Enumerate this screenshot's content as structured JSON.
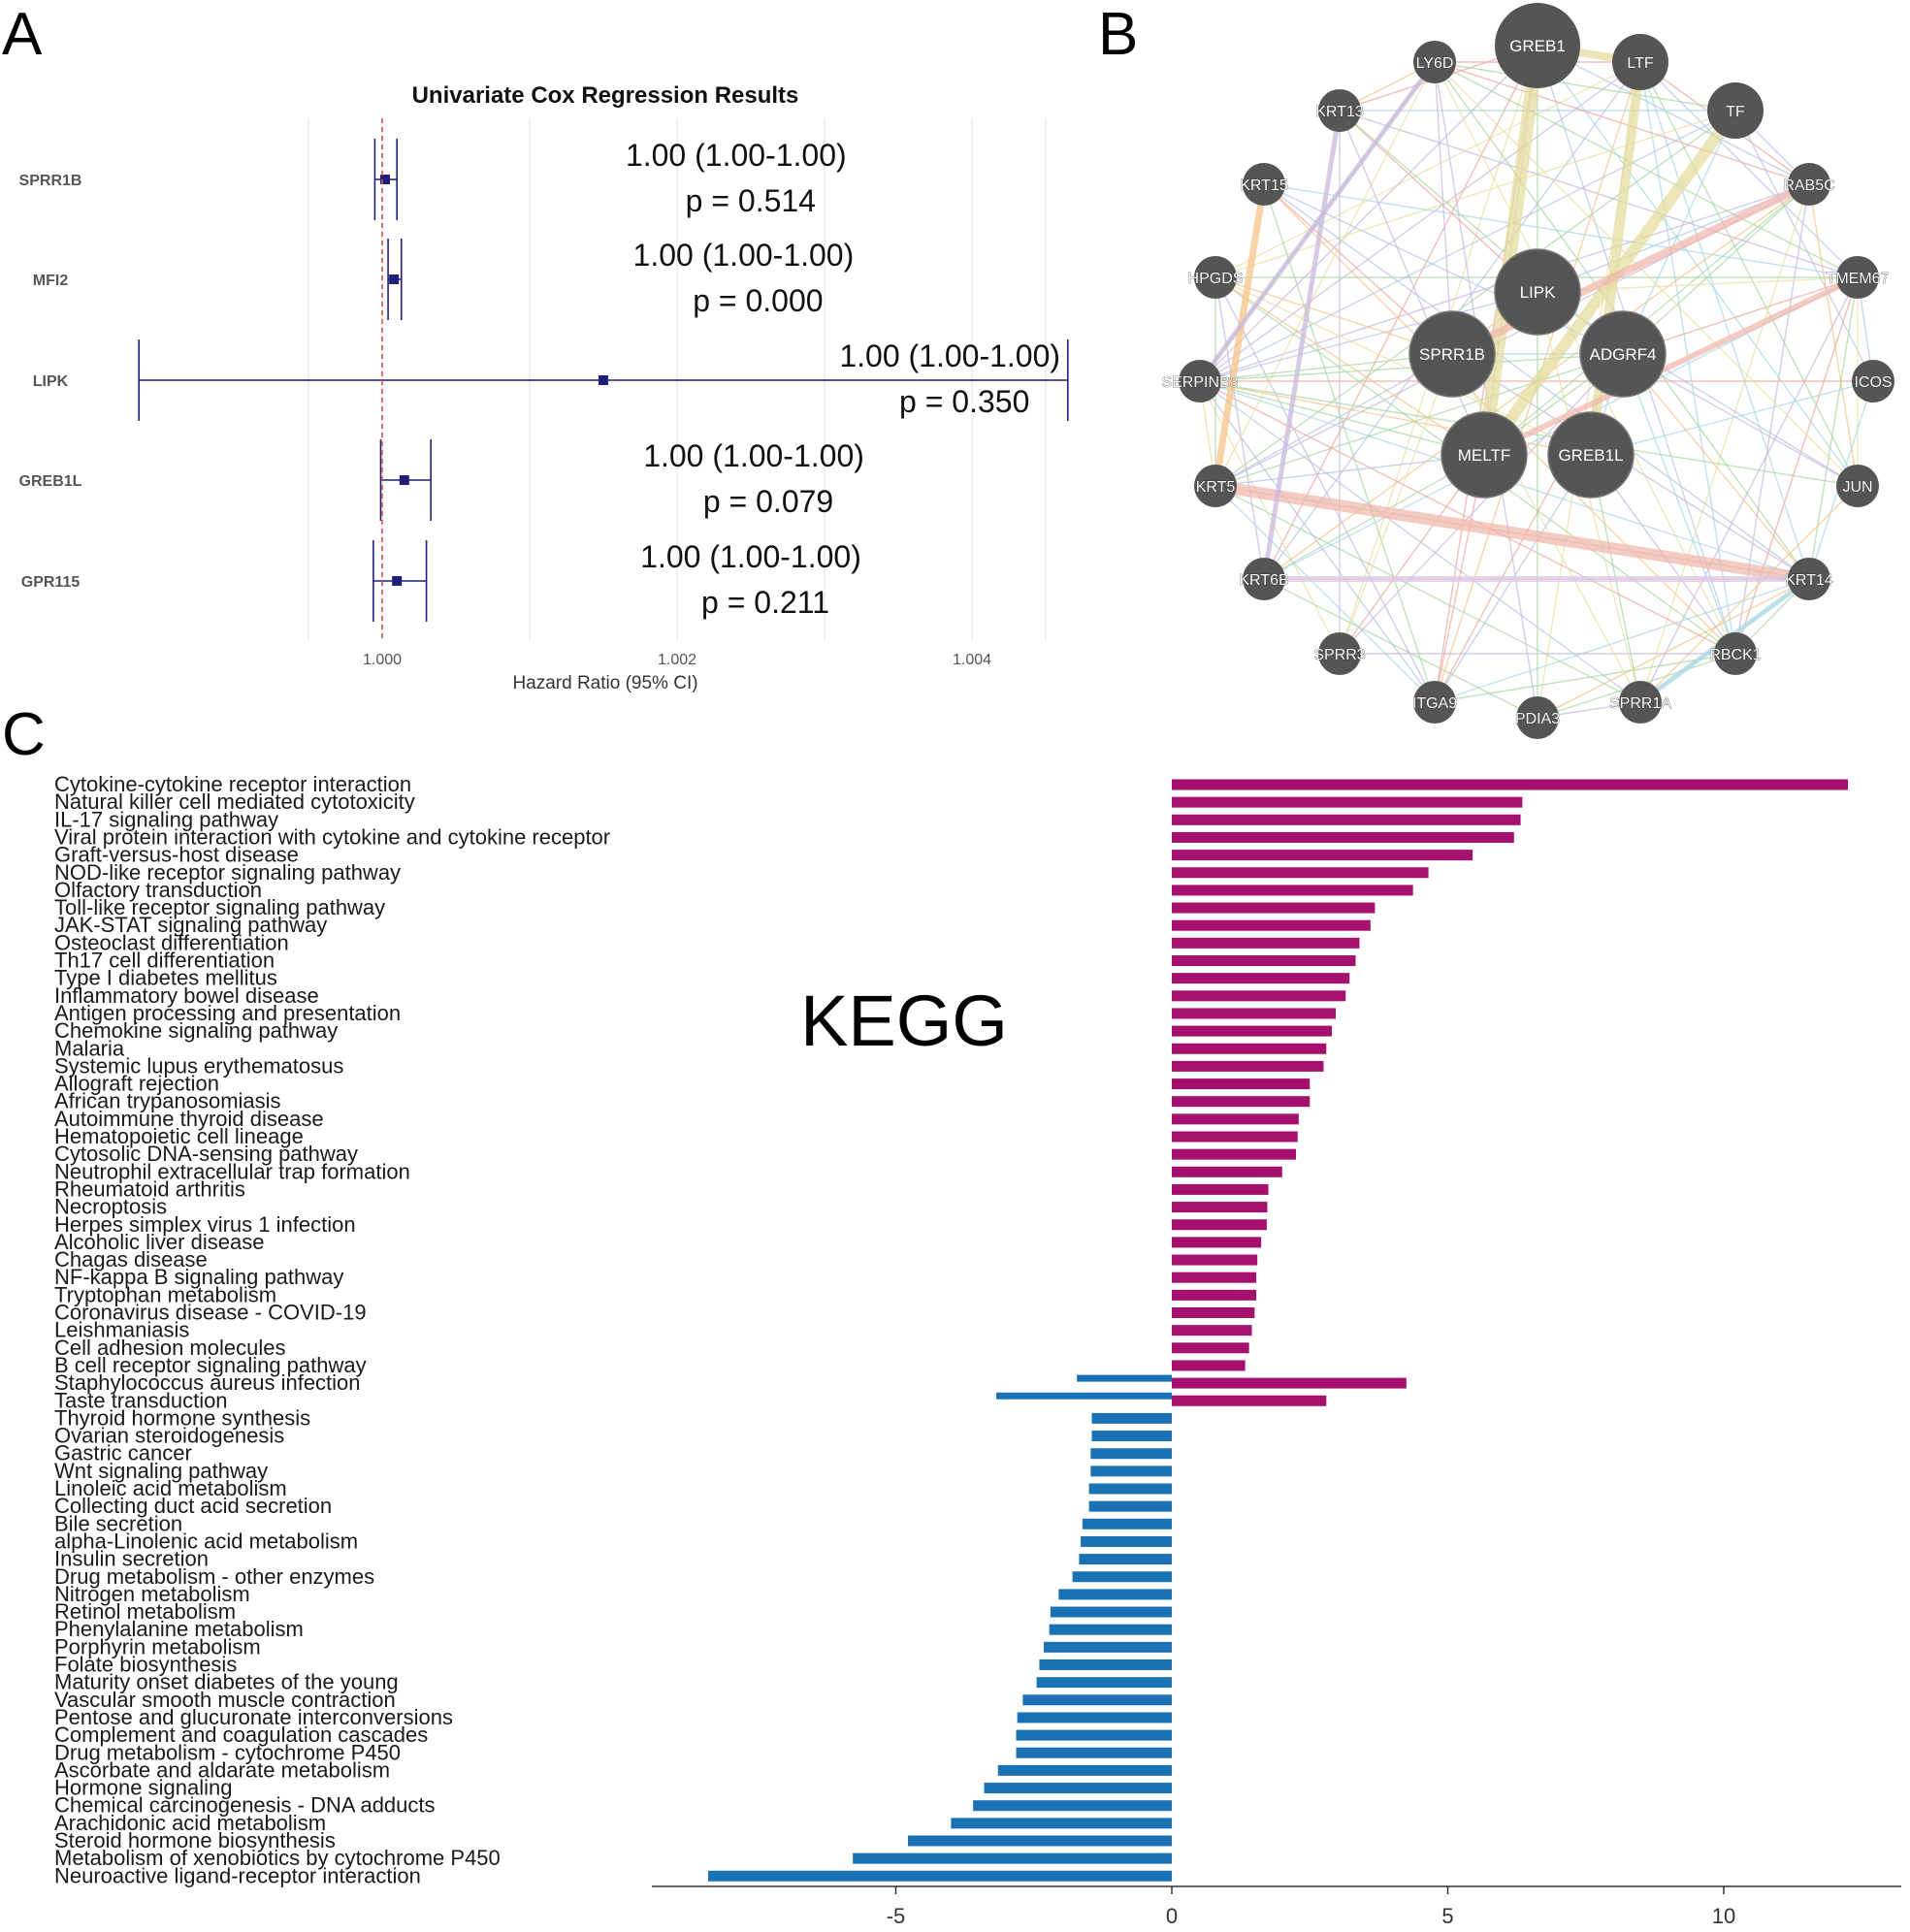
{
  "panels": {
    "a": "A",
    "b": "B",
    "c": "C"
  },
  "chart_data": [
    {
      "type": "forest",
      "title": "Univariate Cox Regression Results",
      "xlabel": "Hazard Ratio (95% CI)",
      "xlim": [
        0.9995,
        1.0048
      ],
      "xticks": [
        1.0,
        1.002,
        1.004
      ],
      "xtick_labels": [
        "1.000",
        "1.002",
        "1.004"
      ],
      "reference_line": 1.0,
      "colors": {
        "point": "#1f1f7a",
        "reference": "#d9534f",
        "grid": "#e6e6e6"
      },
      "rows": [
        {
          "gene": "SPRR1B",
          "hr": 1.00002,
          "lower": 0.99995,
          "upper": 1.0001,
          "hr_text": "1.00 (1.00-1.00)",
          "p_text": "p = 0.514",
          "text_x": 1.0024
        },
        {
          "gene": "MFI2",
          "hr": 1.00008,
          "lower": 1.00004,
          "upper": 1.00013,
          "hr_text": "1.00 (1.00-1.00)",
          "p_text": "p = 0.000",
          "text_x": 1.00245
        },
        {
          "gene": "LIPK",
          "hr": 1.0015,
          "lower": 0.99835,
          "upper": 1.00465,
          "hr_text": "1.00 (1.00-1.00)",
          "p_text": "p = 0.350",
          "text_x": 1.00385
        },
        {
          "gene": "GREB1L",
          "hr": 1.00015,
          "lower": 0.99999,
          "upper": 1.00033,
          "hr_text": "1.00 (1.00-1.00)",
          "p_text": "p = 0.079",
          "text_x": 1.00252
        },
        {
          "gene": "GPR115",
          "hr": 1.0001,
          "lower": 0.99994,
          "upper": 1.0003,
          "hr_text": "1.00 (1.00-1.00)",
          "p_text": "p = 0.211",
          "text_x": 1.0025
        }
      ]
    },
    {
      "type": "network",
      "node_color": "#555555",
      "center_nodes": [
        "LIPK",
        "SPRR1B",
        "ADGRF4",
        "MELTF",
        "GREB1L"
      ],
      "ring_nodes": [
        "GREB1",
        "LTF",
        "TF",
        "RAB5C",
        "TMEM67",
        "ICOS",
        "JUN",
        "KRT14",
        "RBCK1",
        "SPRR1A",
        "PDIA3",
        "ITGA9",
        "SPRR3",
        "KRT6B",
        "KRT5",
        "SERPINB3",
        "HPGDS",
        "KRT15",
        "KRT13",
        "LY6D"
      ],
      "edge_colors": [
        "#c9b8de",
        "#b5c5e6",
        "#a9d8a4",
        "#f0a8a0",
        "#e9e0a4",
        "#f5c48a",
        "#a8d8e8"
      ]
    },
    {
      "type": "bar",
      "orientation": "horizontal",
      "annotation": "KEGG",
      "xlim": [
        -9.5,
        13.3
      ],
      "xticks": [
        -5,
        0,
        5,
        10
      ],
      "colors": {
        "positive": "#a5106e",
        "negative": "#1a72b4"
      },
      "categories": [
        "Cytokine-cytokine receptor interaction",
        "Natural killer cell mediated cytotoxicity",
        "IL-17 signaling pathway",
        "Viral protein interaction with cytokine and cytokine receptor",
        "Graft-versus-host disease",
        "NOD-like receptor signaling pathway",
        "Olfactory transduction",
        "Toll-like receptor signaling pathway",
        "JAK-STAT signaling pathway",
        "Osteoclast differentiation",
        "Th17 cell differentiation",
        "Type I diabetes mellitus",
        "Inflammatory bowel disease",
        "Antigen processing and presentation",
        "Chemokine signaling pathway",
        "Malaria",
        "Systemic lupus erythematosus",
        "Allograft rejection",
        "African trypanosomiasis",
        "Autoimmune thyroid disease",
        "Hematopoietic cell lineage",
        "Cytosolic DNA-sensing pathway",
        "Neutrophil extracellular trap formation",
        "Rheumatoid arthritis",
        "Necroptosis",
        "Herpes simplex virus 1 infection",
        "Alcoholic liver disease",
        "Chagas disease",
        "NF-kappa B signaling pathway",
        "Tryptophan metabolism",
        "Coronavirus disease - COVID-19",
        "Leishmaniasis",
        "Cell adhesion molecules",
        "B cell receptor signaling pathway",
        "Staphylococcus aureus infection",
        "Taste transduction",
        "Thyroid hormone synthesis",
        "Ovarian steroidogenesis",
        "Gastric cancer",
        "Wnt signaling pathway",
        "Linoleic acid metabolism",
        "Collecting duct acid secretion",
        "Bile secretion",
        "alpha-Linolenic acid metabolism",
        "Insulin secretion",
        "Drug metabolism - other enzymes",
        "Nitrogen metabolism",
        "Retinol metabolism",
        "Phenylalanine metabolism",
        "Porphyrin metabolism",
        "Folate biosynthesis",
        "Maturity onset diabetes of the young",
        "Vascular smooth muscle contraction",
        "Pentose and glucuronate interconversions",
        "Complement and coagulation cascades",
        "Drug metabolism - cytochrome P450",
        "Ascorbate and aldarate metabolism",
        "Hormone signaling",
        "Chemical carcinogenesis - DNA adducts",
        "Arachidonic acid metabolism",
        "Steroid hormone biosynthesis",
        "Metabolism of xenobiotics by cytochrome P450",
        "Neuroactive ligand-receptor interaction"
      ],
      "values": [
        12.25,
        6.35,
        6.32,
        6.2,
        5.45,
        4.65,
        4.37,
        3.68,
        3.6,
        3.4,
        3.33,
        3.22,
        3.15,
        2.97,
        2.9,
        2.8,
        2.75,
        2.5,
        2.5,
        2.3,
        2.28,
        2.25,
        2.0,
        1.75,
        1.73,
        1.72,
        1.62,
        1.55,
        1.53,
        1.53,
        1.5,
        1.45,
        1.4,
        1.33,
        4.25,
        2.8,
        -1.45,
        -1.45,
        -1.47,
        -1.47,
        -1.5,
        -1.5,
        -1.62,
        -1.65,
        -1.68,
        -1.8,
        -2.05,
        -2.2,
        -2.22,
        -2.32,
        -2.4,
        -2.45,
        -2.7,
        -2.8,
        -2.82,
        -2.82,
        -3.15,
        -3.4,
        -3.6,
        -4.0,
        -4.78,
        -5.78,
        -8.4
      ],
      "bar_pairs": [
        [
          34,
          -1.72
        ],
        [
          35,
          -3.18
        ]
      ]
    }
  ]
}
